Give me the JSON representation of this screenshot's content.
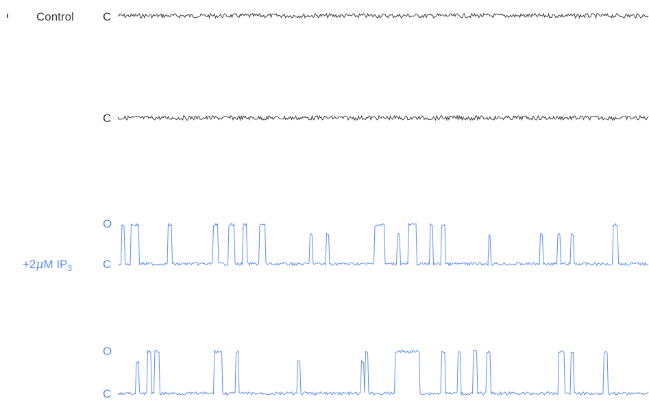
{
  "chart_data": {
    "type": "line",
    "title": "",
    "xlabel": "",
    "ylabel": "",
    "conditions": [
      {
        "label": "Control",
        "color": "#3a3a3a"
      },
      {
        "label": "+2μM IP3",
        "label_main": "+2",
        "label_mu": "μ",
        "label_unit": "M IP",
        "label_sub": "3",
        "color": "#5b8def"
      }
    ],
    "state_labels": {
      "open": "O",
      "closed": "C"
    },
    "traces": [
      {
        "condition": "Control",
        "shows_open_label": false,
        "open_events": []
      },
      {
        "condition": "Control",
        "shows_open_label": false,
        "open_events": []
      },
      {
        "condition": "+2μM IP3",
        "shows_open_label": true,
        "x_range": [
          0,
          1
        ],
        "open_events": [
          [
            0.006,
            0.012
          ],
          [
            0.024,
            0.04
          ],
          [
            0.093,
            0.101
          ],
          [
            0.179,
            0.188
          ],
          [
            0.209,
            0.22
          ],
          [
            0.236,
            0.242
          ],
          [
            0.266,
            0.278
          ],
          [
            0.483,
            0.502
          ],
          [
            0.547,
            0.563
          ],
          [
            0.587,
            0.594
          ],
          [
            0.609,
            0.616
          ],
          [
            0.931,
            0.942
          ]
        ],
        "brief_spikes": [
          0.364,
          0.395,
          0.528,
          0.7,
          0.797,
          0.83,
          0.855
        ]
      },
      {
        "condition": "+2μM IP3",
        "shows_open_label": true,
        "x_range": [
          0,
          1
        ],
        "open_events": [
          [
            0.055,
            0.062
          ],
          [
            0.068,
            0.078
          ],
          [
            0.181,
            0.196
          ],
          [
            0.222,
            0.228
          ],
          [
            0.465,
            0.472
          ],
          [
            0.522,
            0.568
          ],
          [
            0.608,
            0.616
          ],
          [
            0.64,
            0.645
          ],
          [
            0.668,
            0.676
          ],
          [
            0.693,
            0.701
          ],
          [
            0.829,
            0.84
          ],
          [
            0.853,
            0.858
          ],
          [
            0.915,
            0.923
          ]
        ],
        "brief_spikes": [
          0.037,
          0.341,
          0.461
        ]
      }
    ]
  }
}
